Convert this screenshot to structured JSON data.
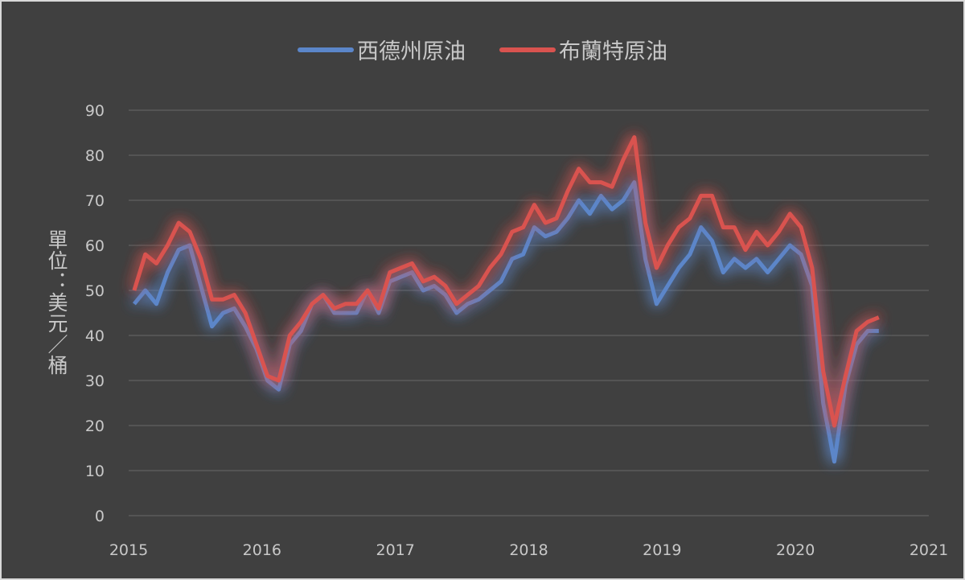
{
  "chart_data": {
    "type": "line",
    "title": "",
    "xlabel": "",
    "ylabel": "單位：美元／桶",
    "xlim": [
      2015,
      2021
    ],
    "ylim": [
      0,
      90
    ],
    "x_ticks": [
      "2015",
      "2016",
      "2017",
      "2018",
      "2019",
      "2020",
      "2021"
    ],
    "y_ticks": [
      "0",
      "10",
      "20",
      "30",
      "40",
      "50",
      "60",
      "70",
      "80",
      "90"
    ],
    "grid": "horizontal",
    "legend_position": "top",
    "x": [
      "2015-01",
      "2015-02",
      "2015-03",
      "2015-04",
      "2015-05",
      "2015-06",
      "2015-07",
      "2015-08",
      "2015-09",
      "2015-10",
      "2015-11",
      "2015-12",
      "2016-01",
      "2016-02",
      "2016-03",
      "2016-04",
      "2016-05",
      "2016-06",
      "2016-07",
      "2016-08",
      "2016-09",
      "2016-10",
      "2016-11",
      "2016-12",
      "2017-01",
      "2017-02",
      "2017-03",
      "2017-04",
      "2017-05",
      "2017-06",
      "2017-07",
      "2017-08",
      "2017-09",
      "2017-10",
      "2017-11",
      "2017-12",
      "2018-01",
      "2018-02",
      "2018-03",
      "2018-04",
      "2018-05",
      "2018-06",
      "2018-07",
      "2018-08",
      "2018-09",
      "2018-10",
      "2018-11",
      "2018-12",
      "2019-01",
      "2019-02",
      "2019-03",
      "2019-04",
      "2019-05",
      "2019-06",
      "2019-07",
      "2019-08",
      "2019-09",
      "2019-10",
      "2019-11",
      "2019-12",
      "2020-01",
      "2020-02",
      "2020-03",
      "2020-04",
      "2020-05",
      "2020-06",
      "2020-07",
      "2020-08"
    ],
    "series": [
      {
        "name": "西德州原油",
        "color": "#5b86c9",
        "values": [
          47,
          50,
          47,
          54,
          59,
          60,
          51,
          42,
          45,
          46,
          42,
          37,
          30,
          28,
          38,
          41,
          47,
          49,
          45,
          45,
          45,
          50,
          45,
          52,
          53,
          54,
          50,
          51,
          49,
          45,
          47,
          48,
          50,
          52,
          57,
          58,
          64,
          62,
          63,
          66,
          70,
          67,
          71,
          68,
          70,
          74,
          57,
          47,
          51,
          55,
          58,
          64,
          61,
          54,
          57,
          55,
          57,
          54,
          57,
          60,
          58,
          51,
          25,
          12,
          29,
          38,
          41,
          41
        ]
      },
      {
        "name": "布蘭特原油",
        "color": "#d9534f",
        "values": [
          50,
          58,
          56,
          60,
          65,
          63,
          57,
          48,
          48,
          49,
          45,
          38,
          31,
          30,
          40,
          43,
          47,
          49,
          46,
          47,
          47,
          50,
          46,
          54,
          55,
          56,
          52,
          53,
          51,
          47,
          49,
          51,
          55,
          58,
          63,
          64,
          69,
          65,
          66,
          72,
          77,
          74,
          74,
          73,
          79,
          84,
          65,
          55,
          60,
          64,
          66,
          71,
          71,
          64,
          64,
          59,
          63,
          60,
          63,
          67,
          64,
          55,
          32,
          20,
          31,
          41,
          43,
          44
        ]
      }
    ]
  }
}
